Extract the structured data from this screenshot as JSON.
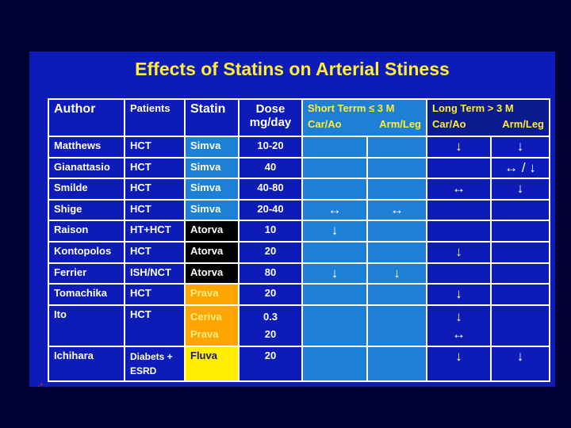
{
  "title": "Effects of Statins on Arterial Stiness",
  "header": {
    "author": "Author",
    "patients": "Patients",
    "statin": "Statin",
    "dose_line1": "Dose",
    "dose_line2": "mg/day",
    "short_term": "Short Terrm ≤ 3 M",
    "long_term": "Long Term > 3 M",
    "car_ao": "Car/Ao",
    "arm_leg": "Arm/Leg"
  },
  "rows": [
    {
      "author": "Matthews",
      "patients": "HCT",
      "statin": "Simva",
      "statin_color": "#1e7fd6",
      "dose": "10-20",
      "s_car": "",
      "s_arm": "",
      "l_car": "↓",
      "l_arm": "↓"
    },
    {
      "author": "Gianattasio",
      "patients": "HCT",
      "statin": "Simva",
      "statin_color": "#1e7fd6",
      "dose": "40",
      "s_car": "",
      "s_arm": "",
      "l_car": "",
      "l_arm": "↔ / ↓"
    },
    {
      "author": "Smilde",
      "patients": "HCT",
      "statin": "Simva",
      "statin_color": "#1e7fd6",
      "dose": "40-80",
      "s_car": "",
      "s_arm": "",
      "l_car": "↔",
      "l_arm": "↓"
    },
    {
      "author": "Shige",
      "patients": "HCT",
      "statin": "Simva",
      "statin_color": "#1e7fd6",
      "dose": "20-40",
      "s_car": "↔",
      "s_arm": "↔",
      "l_car": "",
      "l_arm": ""
    },
    {
      "author": "Raison",
      "patients": "HT+HCT",
      "statin": "Atorva",
      "statin_color": "#000000",
      "dose": "10",
      "s_car": "↓",
      "s_arm": "",
      "l_car": "",
      "l_arm": ""
    },
    {
      "author": "Kontopolos",
      "patients": "HCT",
      "statin": "Atorva",
      "statin_color": "#000000",
      "dose": "20",
      "s_car": "",
      "s_arm": "",
      "l_car": "↓",
      "l_arm": ""
    },
    {
      "author": "Ferrier",
      "patients": "ISH/NCT",
      "statin": "Atorva",
      "statin_color": "#000000",
      "dose": "80",
      "s_car": "↓",
      "s_arm": "↓",
      "l_car": "",
      "l_arm": ""
    },
    {
      "author": "Tomachika",
      "patients": "HCT",
      "statin": "Prava",
      "statin_color": "#ffa500",
      "dose": "20",
      "s_car": "",
      "s_arm": "",
      "l_car": "↓",
      "l_arm": ""
    }
  ],
  "ito": {
    "author": "Ito",
    "patients": "HCT",
    "statin1": "Ceriva",
    "statin2": "Prava",
    "dose1": "0.3",
    "dose2": "20",
    "l_car1": "↓",
    "l_car2": "↔"
  },
  "ichihara": {
    "author": "Ichihara",
    "patients1": "Diabets +",
    "patients2": "ESRD",
    "statin": "Fluva",
    "dose": "20",
    "l_car": "↓",
    "l_arm": "↓"
  },
  "corner_mark": "-*"
}
